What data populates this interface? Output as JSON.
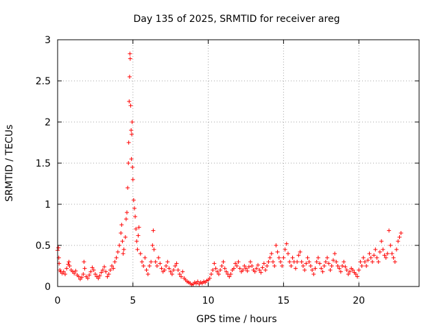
{
  "chart_data": {
    "type": "scatter",
    "title": "Day 135 of 2025, SRMTID for receiver areg",
    "xlabel": "GPS time / hours",
    "ylabel": "SRMTID / TECUs",
    "xlim": [
      0,
      24
    ],
    "ylim": [
      0,
      3
    ],
    "xticks": [
      0,
      5,
      10,
      15,
      20
    ],
    "yticks": [
      0,
      0.5,
      1,
      1.5,
      2,
      2.5,
      3
    ],
    "xtick_labels": [
      "0",
      "5",
      "10",
      "15",
      "20"
    ],
    "ytick_labels": [
      "0",
      "0.5",
      "1",
      "1.5",
      "2",
      "2.5",
      "3"
    ],
    "grid": true,
    "marker": "+",
    "color": "#ff0000",
    "series": [
      {
        "name": "SRMTID",
        "points": [
          [
            0.0,
            0.44
          ],
          [
            0.05,
            0.47
          ],
          [
            0.08,
            0.35
          ],
          [
            0.1,
            0.28
          ],
          [
            0.15,
            0.2
          ],
          [
            0.2,
            0.18
          ],
          [
            0.3,
            0.16
          ],
          [
            0.4,
            0.18
          ],
          [
            0.5,
            0.15
          ],
          [
            0.6,
            0.22
          ],
          [
            0.7,
            0.27
          ],
          [
            0.75,
            0.3
          ],
          [
            0.8,
            0.25
          ],
          [
            0.9,
            0.2
          ],
          [
            1.0,
            0.18
          ],
          [
            1.1,
            0.16
          ],
          [
            1.2,
            0.19
          ],
          [
            1.3,
            0.14
          ],
          [
            1.4,
            0.12
          ],
          [
            1.5,
            0.09
          ],
          [
            1.6,
            0.11
          ],
          [
            1.7,
            0.15
          ],
          [
            1.75,
            0.3
          ],
          [
            1.8,
            0.22
          ],
          [
            1.9,
            0.12
          ],
          [
            2.0,
            0.1
          ],
          [
            2.1,
            0.14
          ],
          [
            2.2,
            0.18
          ],
          [
            2.3,
            0.23
          ],
          [
            2.4,
            0.2
          ],
          [
            2.5,
            0.15
          ],
          [
            2.6,
            0.12
          ],
          [
            2.7,
            0.1
          ],
          [
            2.8,
            0.13
          ],
          [
            2.9,
            0.17
          ],
          [
            3.0,
            0.2
          ],
          [
            3.1,
            0.24
          ],
          [
            3.2,
            0.18
          ],
          [
            3.3,
            0.12
          ],
          [
            3.4,
            0.15
          ],
          [
            3.5,
            0.2
          ],
          [
            3.6,
            0.25
          ],
          [
            3.7,
            0.22
          ],
          [
            3.8,
            0.3
          ],
          [
            3.9,
            0.35
          ],
          [
            4.0,
            0.42
          ],
          [
            4.1,
            0.5
          ],
          [
            4.2,
            0.65
          ],
          [
            4.25,
            0.75
          ],
          [
            4.3,
            0.55
          ],
          [
            4.35,
            0.4
          ],
          [
            4.4,
            0.45
          ],
          [
            4.5,
            0.6
          ],
          [
            4.55,
            0.82
          ],
          [
            4.6,
            0.9
          ],
          [
            4.65,
            1.2
          ],
          [
            4.7,
            1.5
          ],
          [
            4.72,
            1.75
          ],
          [
            4.75,
            2.25
          ],
          [
            4.78,
            2.55
          ],
          [
            4.8,
            2.83
          ],
          [
            4.82,
            2.77
          ],
          [
            4.85,
            2.2
          ],
          [
            4.88,
            1.9
          ],
          [
            4.9,
            1.55
          ],
          [
            4.92,
            1.85
          ],
          [
            4.95,
            2.0
          ],
          [
            4.97,
            1.45
          ],
          [
            5.0,
            1.3
          ],
          [
            5.05,
            1.05
          ],
          [
            5.1,
            0.95
          ],
          [
            5.15,
            0.85
          ],
          [
            5.2,
            0.7
          ],
          [
            5.25,
            0.55
          ],
          [
            5.3,
            0.45
          ],
          [
            5.35,
            0.62
          ],
          [
            5.4,
            0.72
          ],
          [
            5.5,
            0.4
          ],
          [
            5.6,
            0.3
          ],
          [
            5.7,
            0.25
          ],
          [
            5.8,
            0.35
          ],
          [
            5.9,
            0.2
          ],
          [
            6.0,
            0.15
          ],
          [
            6.1,
            0.25
          ],
          [
            6.2,
            0.3
          ],
          [
            6.3,
            0.5
          ],
          [
            6.35,
            0.68
          ],
          [
            6.4,
            0.45
          ],
          [
            6.5,
            0.3
          ],
          [
            6.6,
            0.25
          ],
          [
            6.7,
            0.35
          ],
          [
            6.8,
            0.28
          ],
          [
            6.9,
            0.22
          ],
          [
            7.0,
            0.18
          ],
          [
            7.1,
            0.2
          ],
          [
            7.2,
            0.25
          ],
          [
            7.3,
            0.3
          ],
          [
            7.4,
            0.22
          ],
          [
            7.5,
            0.18
          ],
          [
            7.6,
            0.15
          ],
          [
            7.7,
            0.2
          ],
          [
            7.8,
            0.25
          ],
          [
            7.9,
            0.28
          ],
          [
            8.0,
            0.2
          ],
          [
            8.1,
            0.15
          ],
          [
            8.2,
            0.12
          ],
          [
            8.3,
            0.18
          ],
          [
            8.4,
            0.1
          ],
          [
            8.5,
            0.08
          ],
          [
            8.6,
            0.06
          ],
          [
            8.7,
            0.05
          ],
          [
            8.8,
            0.04
          ],
          [
            8.9,
            0.02
          ],
          [
            9.0,
            0.03
          ],
          [
            9.1,
            0.05
          ],
          [
            9.2,
            0.04
          ],
          [
            9.3,
            0.06
          ],
          [
            9.4,
            0.03
          ],
          [
            9.5,
            0.05
          ],
          [
            9.6,
            0.04
          ],
          [
            9.7,
            0.06
          ],
          [
            9.8,
            0.05
          ],
          [
            9.9,
            0.07
          ],
          [
            10.0,
            0.08
          ],
          [
            10.1,
            0.1
          ],
          [
            10.2,
            0.15
          ],
          [
            10.3,
            0.2
          ],
          [
            10.4,
            0.28
          ],
          [
            10.5,
            0.22
          ],
          [
            10.6,
            0.18
          ],
          [
            10.7,
            0.15
          ],
          [
            10.8,
            0.2
          ],
          [
            10.9,
            0.25
          ],
          [
            11.0,
            0.3
          ],
          [
            11.1,
            0.22
          ],
          [
            11.2,
            0.18
          ],
          [
            11.3,
            0.15
          ],
          [
            11.4,
            0.12
          ],
          [
            11.5,
            0.15
          ],
          [
            11.6,
            0.2
          ],
          [
            11.7,
            0.22
          ],
          [
            11.8,
            0.28
          ],
          [
            11.9,
            0.25
          ],
          [
            12.0,
            0.3
          ],
          [
            12.1,
            0.22
          ],
          [
            12.2,
            0.18
          ],
          [
            12.3,
            0.2
          ],
          [
            12.4,
            0.25
          ],
          [
            12.5,
            0.22
          ],
          [
            12.6,
            0.19
          ],
          [
            12.7,
            0.24
          ],
          [
            12.8,
            0.3
          ],
          [
            12.9,
            0.25
          ],
          [
            13.0,
            0.2
          ],
          [
            13.1,
            0.18
          ],
          [
            13.2,
            0.22
          ],
          [
            13.3,
            0.26
          ],
          [
            13.4,
            0.2
          ],
          [
            13.5,
            0.17
          ],
          [
            13.6,
            0.23
          ],
          [
            13.7,
            0.28
          ],
          [
            13.8,
            0.2
          ],
          [
            13.9,
            0.25
          ],
          [
            14.0,
            0.3
          ],
          [
            14.1,
            0.35
          ],
          [
            14.2,
            0.4
          ],
          [
            14.3,
            0.3
          ],
          [
            14.4,
            0.25
          ],
          [
            14.5,
            0.5
          ],
          [
            14.6,
            0.42
          ],
          [
            14.7,
            0.35
          ],
          [
            14.8,
            0.3
          ],
          [
            14.9,
            0.25
          ],
          [
            15.0,
            0.35
          ],
          [
            15.1,
            0.45
          ],
          [
            15.2,
            0.52
          ],
          [
            15.3,
            0.4
          ],
          [
            15.4,
            0.3
          ],
          [
            15.5,
            0.25
          ],
          [
            15.6,
            0.35
          ],
          [
            15.7,
            0.3
          ],
          [
            15.8,
            0.22
          ],
          [
            15.9,
            0.3
          ],
          [
            16.0,
            0.38
          ],
          [
            16.1,
            0.42
          ],
          [
            16.2,
            0.3
          ],
          [
            16.3,
            0.25
          ],
          [
            16.4,
            0.2
          ],
          [
            16.5,
            0.28
          ],
          [
            16.6,
            0.35
          ],
          [
            16.7,
            0.3
          ],
          [
            16.8,
            0.25
          ],
          [
            16.9,
            0.2
          ],
          [
            17.0,
            0.15
          ],
          [
            17.1,
            0.22
          ],
          [
            17.2,
            0.3
          ],
          [
            17.3,
            0.35
          ],
          [
            17.4,
            0.28
          ],
          [
            17.5,
            0.22
          ],
          [
            17.6,
            0.18
          ],
          [
            17.7,
            0.25
          ],
          [
            17.8,
            0.3
          ],
          [
            17.9,
            0.35
          ],
          [
            18.0,
            0.28
          ],
          [
            18.1,
            0.2
          ],
          [
            18.2,
            0.25
          ],
          [
            18.3,
            0.32
          ],
          [
            18.4,
            0.4
          ],
          [
            18.5,
            0.3
          ],
          [
            18.6,
            0.25
          ],
          [
            18.7,
            0.22
          ],
          [
            18.8,
            0.18
          ],
          [
            18.9,
            0.25
          ],
          [
            19.0,
            0.3
          ],
          [
            19.1,
            0.24
          ],
          [
            19.2,
            0.2
          ],
          [
            19.3,
            0.15
          ],
          [
            19.4,
            0.18
          ],
          [
            19.5,
            0.22
          ],
          [
            19.6,
            0.2
          ],
          [
            19.7,
            0.17
          ],
          [
            19.8,
            0.15
          ],
          [
            19.9,
            0.12
          ],
          [
            20.0,
            0.2
          ],
          [
            20.1,
            0.3
          ],
          [
            20.2,
            0.25
          ],
          [
            20.3,
            0.35
          ],
          [
            20.4,
            0.3
          ],
          [
            20.5,
            0.25
          ],
          [
            20.6,
            0.32
          ],
          [
            20.7,
            0.4
          ],
          [
            20.8,
            0.35
          ],
          [
            20.9,
            0.3
          ],
          [
            21.0,
            0.38
          ],
          [
            21.1,
            0.45
          ],
          [
            21.2,
            0.35
          ],
          [
            21.3,
            0.3
          ],
          [
            21.4,
            0.42
          ],
          [
            21.5,
            0.55
          ],
          [
            21.6,
            0.45
          ],
          [
            21.7,
            0.38
          ],
          [
            21.8,
            0.35
          ],
          [
            21.9,
            0.4
          ],
          [
            22.0,
            0.68
          ],
          [
            22.1,
            0.5
          ],
          [
            22.2,
            0.4
          ],
          [
            22.3,
            0.35
          ],
          [
            22.4,
            0.3
          ],
          [
            22.5,
            0.45
          ],
          [
            22.6,
            0.55
          ],
          [
            22.7,
            0.6
          ],
          [
            22.8,
            0.65
          ]
        ]
      }
    ]
  }
}
